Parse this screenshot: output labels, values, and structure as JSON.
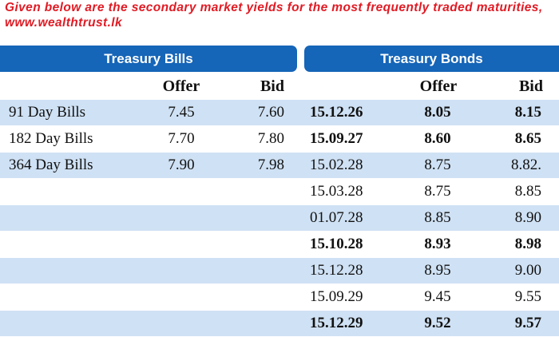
{
  "intro": "Given below are the secondary market yields for the most frequently traded maturities, www.wealthtrust.lk",
  "bills": {
    "title": "Treasury Bills",
    "offer_header": "Offer",
    "bid_header": "Bid",
    "rows": [
      {
        "name": "91 Day Bills",
        "offer": "7.45",
        "bid": "7.60"
      },
      {
        "name": "182 Day Bills",
        "offer": "7.70",
        "bid": "7.80"
      },
      {
        "name": "364 Day Bills",
        "offer": "7.90",
        "bid": "7.98"
      }
    ]
  },
  "bonds": {
    "title": "Treasury Bonds",
    "offer_header": "Offer",
    "bid_header": "Bid",
    "rows": [
      {
        "date": "15.12.26",
        "offer": "8.05",
        "bid": "8.15",
        "bold": true
      },
      {
        "date": "15.09.27",
        "offer": "8.60",
        "bid": "8.65",
        "bold": true
      },
      {
        "date": "15.02.28",
        "offer": "8.75",
        "bid": "8.82.",
        "bold": false
      },
      {
        "date": "15.03.28",
        "offer": "8.75",
        "bid": "8.85",
        "bold": false
      },
      {
        "date": "01.07.28",
        "offer": "8.85",
        "bid": "8.90",
        "bold": false
      },
      {
        "date": "15.10.28",
        "offer": "8.93",
        "bid": "8.98",
        "bold": true
      },
      {
        "date": "15.12.28",
        "offer": "8.95",
        "bid": "9.00",
        "bold": false
      },
      {
        "date": "15.09.29",
        "offer": "9.45",
        "bid": "9.55",
        "bold": false
      },
      {
        "date": "15.12.29",
        "offer": "9.52",
        "bid": "9.57",
        "bold": true
      }
    ]
  },
  "colors": {
    "header_blue": "#1565b8",
    "row_stripe": "#cfe1f4",
    "intro_red": "#e01b24"
  }
}
